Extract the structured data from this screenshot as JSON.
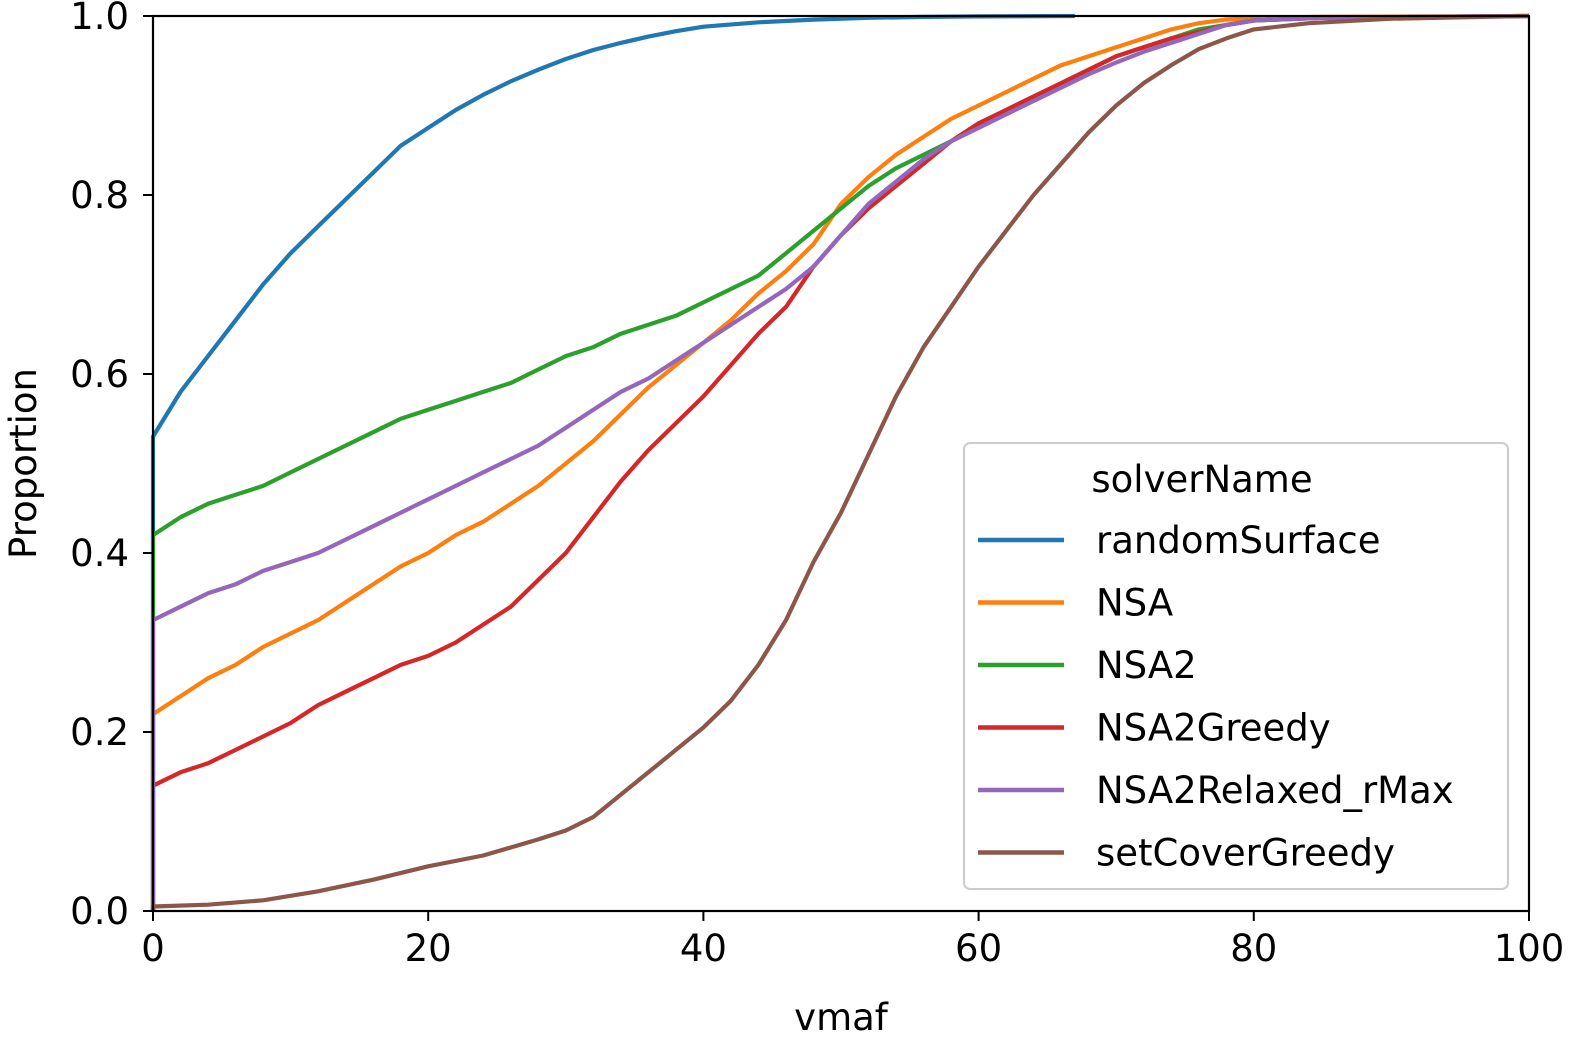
{
  "chart_data": {
    "type": "line",
    "title": "",
    "xlabel": "vmaf",
    "ylabel": "Proportion",
    "xlim": [
      0,
      100
    ],
    "ylim": [
      0,
      1
    ],
    "xticks": [
      0,
      20,
      40,
      60,
      80,
      100
    ],
    "yticks": [
      0.0,
      0.2,
      0.4,
      0.6,
      0.8,
      1.0
    ],
    "xtick_labels": [
      "0",
      "20",
      "40",
      "60",
      "80",
      "100"
    ],
    "ytick_labels": [
      "0.0",
      "0.2",
      "0.4",
      "0.6",
      "0.8",
      "1.0"
    ],
    "grid": false,
    "legend": {
      "title": "solverName",
      "placement": "lower-right"
    },
    "series": [
      {
        "name": "randomSurface",
        "color": "#1f77b4",
        "points": [
          [
            0,
            0.53
          ],
          [
            2,
            0.58
          ],
          [
            4,
            0.62
          ],
          [
            6,
            0.66
          ],
          [
            8,
            0.7
          ],
          [
            10,
            0.735
          ],
          [
            12,
            0.765
          ],
          [
            14,
            0.795
          ],
          [
            16,
            0.825
          ],
          [
            18,
            0.855
          ],
          [
            20,
            0.875
          ],
          [
            22,
            0.895
          ],
          [
            24,
            0.912
          ],
          [
            26,
            0.927
          ],
          [
            28,
            0.94
          ],
          [
            30,
            0.952
          ],
          [
            32,
            0.962
          ],
          [
            34,
            0.97
          ],
          [
            36,
            0.977
          ],
          [
            38,
            0.983
          ],
          [
            40,
            0.988
          ],
          [
            44,
            0.993
          ],
          [
            48,
            0.996
          ],
          [
            52,
            0.998
          ],
          [
            56,
            0.999
          ],
          [
            60,
            0.9995
          ],
          [
            67,
            1.0
          ]
        ]
      },
      {
        "name": "NSA",
        "color": "#ff7f0e",
        "points": [
          [
            0,
            0.22
          ],
          [
            2,
            0.24
          ],
          [
            4,
            0.26
          ],
          [
            6,
            0.275
          ],
          [
            8,
            0.295
          ],
          [
            10,
            0.31
          ],
          [
            12,
            0.325
          ],
          [
            14,
            0.345
          ],
          [
            16,
            0.365
          ],
          [
            18,
            0.385
          ],
          [
            20,
            0.4
          ],
          [
            22,
            0.42
          ],
          [
            24,
            0.435
          ],
          [
            26,
            0.455
          ],
          [
            28,
            0.475
          ],
          [
            30,
            0.5
          ],
          [
            32,
            0.525
          ],
          [
            34,
            0.555
          ],
          [
            36,
            0.585
          ],
          [
            38,
            0.61
          ],
          [
            40,
            0.635
          ],
          [
            42,
            0.66
          ],
          [
            44,
            0.69
          ],
          [
            46,
            0.715
          ],
          [
            48,
            0.745
          ],
          [
            50,
            0.79
          ],
          [
            52,
            0.82
          ],
          [
            54,
            0.845
          ],
          [
            56,
            0.865
          ],
          [
            58,
            0.885
          ],
          [
            60,
            0.9
          ],
          [
            62,
            0.915
          ],
          [
            64,
            0.93
          ],
          [
            66,
            0.945
          ],
          [
            68,
            0.955
          ],
          [
            70,
            0.965
          ],
          [
            72,
            0.975
          ],
          [
            74,
            0.985
          ],
          [
            76,
            0.992
          ],
          [
            78,
            0.996
          ],
          [
            80,
            0.998
          ],
          [
            85,
            0.999
          ],
          [
            100,
            1.0
          ]
        ]
      },
      {
        "name": "NSA2",
        "color": "#2ca02c",
        "points": [
          [
            0,
            0.42
          ],
          [
            2,
            0.44
          ],
          [
            4,
            0.455
          ],
          [
            6,
            0.465
          ],
          [
            8,
            0.475
          ],
          [
            10,
            0.49
          ],
          [
            12,
            0.505
          ],
          [
            14,
            0.52
          ],
          [
            16,
            0.535
          ],
          [
            18,
            0.55
          ],
          [
            20,
            0.56
          ],
          [
            22,
            0.57
          ],
          [
            24,
            0.58
          ],
          [
            26,
            0.59
          ],
          [
            28,
            0.605
          ],
          [
            30,
            0.62
          ],
          [
            32,
            0.63
          ],
          [
            34,
            0.645
          ],
          [
            36,
            0.655
          ],
          [
            38,
            0.665
          ],
          [
            40,
            0.68
          ],
          [
            42,
            0.695
          ],
          [
            44,
            0.71
          ],
          [
            46,
            0.735
          ],
          [
            48,
            0.76
          ],
          [
            50,
            0.785
          ],
          [
            52,
            0.81
          ],
          [
            54,
            0.83
          ],
          [
            56,
            0.845
          ],
          [
            58,
            0.86
          ],
          [
            60,
            0.88
          ],
          [
            62,
            0.895
          ],
          [
            64,
            0.91
          ],
          [
            66,
            0.925
          ],
          [
            68,
            0.94
          ],
          [
            70,
            0.955
          ],
          [
            72,
            0.965
          ],
          [
            74,
            0.975
          ],
          [
            76,
            0.985
          ],
          [
            78,
            0.99
          ],
          [
            80,
            0.995
          ],
          [
            85,
            0.998
          ],
          [
            100,
            1.0
          ]
        ]
      },
      {
        "name": "NSA2Greedy",
        "color": "#d62728",
        "points": [
          [
            0,
            0.14
          ],
          [
            2,
            0.155
          ],
          [
            4,
            0.165
          ],
          [
            6,
            0.18
          ],
          [
            8,
            0.195
          ],
          [
            10,
            0.21
          ],
          [
            12,
            0.23
          ],
          [
            14,
            0.245
          ],
          [
            16,
            0.26
          ],
          [
            18,
            0.275
          ],
          [
            20,
            0.285
          ],
          [
            22,
            0.3
          ],
          [
            24,
            0.32
          ],
          [
            26,
            0.34
          ],
          [
            28,
            0.37
          ],
          [
            30,
            0.4
          ],
          [
            32,
            0.44
          ],
          [
            34,
            0.48
          ],
          [
            36,
            0.515
          ],
          [
            38,
            0.545
          ],
          [
            40,
            0.575
          ],
          [
            42,
            0.61
          ],
          [
            44,
            0.645
          ],
          [
            46,
            0.675
          ],
          [
            48,
            0.72
          ],
          [
            50,
            0.755
          ],
          [
            52,
            0.785
          ],
          [
            54,
            0.81
          ],
          [
            56,
            0.835
          ],
          [
            58,
            0.86
          ],
          [
            60,
            0.88
          ],
          [
            62,
            0.895
          ],
          [
            64,
            0.91
          ],
          [
            66,
            0.925
          ],
          [
            68,
            0.94
          ],
          [
            70,
            0.955
          ],
          [
            72,
            0.965
          ],
          [
            74,
            0.975
          ],
          [
            76,
            0.982
          ],
          [
            78,
            0.99
          ],
          [
            80,
            0.995
          ],
          [
            85,
            0.998
          ],
          [
            100,
            1.0
          ]
        ]
      },
      {
        "name": "NSA2Relaxed_rMax",
        "color": "#9467bd",
        "points": [
          [
            0,
            0.325
          ],
          [
            2,
            0.34
          ],
          [
            4,
            0.355
          ],
          [
            6,
            0.365
          ],
          [
            8,
            0.38
          ],
          [
            10,
            0.39
          ],
          [
            12,
            0.4
          ],
          [
            14,
            0.415
          ],
          [
            16,
            0.43
          ],
          [
            18,
            0.445
          ],
          [
            20,
            0.46
          ],
          [
            22,
            0.475
          ],
          [
            24,
            0.49
          ],
          [
            26,
            0.505
          ],
          [
            28,
            0.52
          ],
          [
            30,
            0.54
          ],
          [
            32,
            0.56
          ],
          [
            34,
            0.58
          ],
          [
            36,
            0.595
          ],
          [
            38,
            0.615
          ],
          [
            40,
            0.635
          ],
          [
            42,
            0.655
          ],
          [
            44,
            0.675
          ],
          [
            46,
            0.695
          ],
          [
            48,
            0.72
          ],
          [
            50,
            0.755
          ],
          [
            52,
            0.79
          ],
          [
            54,
            0.815
          ],
          [
            56,
            0.84
          ],
          [
            58,
            0.86
          ],
          [
            60,
            0.875
          ],
          [
            62,
            0.89
          ],
          [
            64,
            0.905
          ],
          [
            66,
            0.92
          ],
          [
            68,
            0.935
          ],
          [
            70,
            0.948
          ],
          [
            72,
            0.96
          ],
          [
            74,
            0.97
          ],
          [
            76,
            0.98
          ],
          [
            78,
            0.99
          ],
          [
            80,
            0.995
          ],
          [
            85,
            0.998
          ],
          [
            100,
            1.0
          ]
        ]
      },
      {
        "name": "setCoverGreedy",
        "color": "#8c564b",
        "points": [
          [
            0,
            0.005
          ],
          [
            4,
            0.007
          ],
          [
            8,
            0.012
          ],
          [
            12,
            0.022
          ],
          [
            16,
            0.035
          ],
          [
            20,
            0.05
          ],
          [
            24,
            0.062
          ],
          [
            28,
            0.08
          ],
          [
            30,
            0.09
          ],
          [
            32,
            0.105
          ],
          [
            34,
            0.13
          ],
          [
            36,
            0.155
          ],
          [
            38,
            0.18
          ],
          [
            40,
            0.205
          ],
          [
            42,
            0.235
          ],
          [
            44,
            0.275
          ],
          [
            46,
            0.325
          ],
          [
            48,
            0.39
          ],
          [
            50,
            0.445
          ],
          [
            52,
            0.51
          ],
          [
            54,
            0.575
          ],
          [
            56,
            0.63
          ],
          [
            58,
            0.675
          ],
          [
            60,
            0.72
          ],
          [
            62,
            0.76
          ],
          [
            64,
            0.8
          ],
          [
            66,
            0.835
          ],
          [
            68,
            0.87
          ],
          [
            70,
            0.9
          ],
          [
            72,
            0.925
          ],
          [
            74,
            0.945
          ],
          [
            76,
            0.963
          ],
          [
            78,
            0.975
          ],
          [
            80,
            0.985
          ],
          [
            84,
            0.992
          ],
          [
            90,
            0.997
          ],
          [
            100,
            1.0
          ]
        ]
      }
    ]
  }
}
